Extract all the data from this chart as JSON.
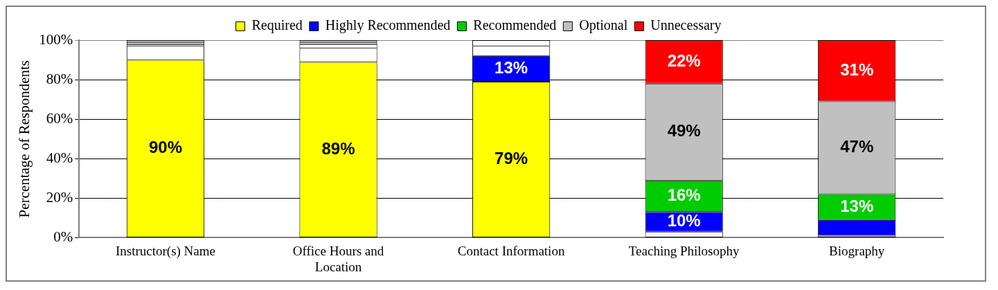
{
  "chart_data": {
    "type": "bar",
    "stacked": true,
    "ylabel": "Percentage of Respondents",
    "categories": [
      "Instructor(s) Name",
      "Office Hours and Location",
      "Contact Information",
      "Teaching Philosophy",
      "Biography"
    ],
    "series": [
      {
        "name": "Required",
        "color": "#ffff00",
        "colors": [
          "#ffff00",
          "#ffff00",
          "#ffff00",
          "#ffffff",
          "#ffffff"
        ],
        "values": [
          90,
          89,
          79,
          3,
          1
        ],
        "value_labels": [
          "90%",
          "89%",
          "79%",
          null,
          null
        ]
      },
      {
        "name": "Highly Recommended",
        "color": "#0000ff",
        "colors": [
          "#ffffff",
          "#ffffff",
          "#0000ff",
          "#0000ff",
          "#0000ff"
        ],
        "values": [
          7,
          7,
          13,
          10,
          8
        ],
        "value_labels": [
          null,
          null,
          "13%",
          "10%",
          null
        ]
      },
      {
        "name": "Recommended",
        "color": "#00cc00",
        "colors": [
          "#ffffff",
          "#ffffff",
          "#ffffff",
          "#00cc00",
          "#00cc00"
        ],
        "values": [
          1,
          2,
          5,
          16,
          13
        ],
        "value_labels": [
          null,
          null,
          null,
          "16%",
          "13%"
        ]
      },
      {
        "name": "Optional",
        "color": "#c0c0c0",
        "colors": [
          "#ffffff",
          "#ffffff",
          "#ffffff",
          "#c0c0c0",
          "#c0c0c0"
        ],
        "values": [
          1,
          1,
          3,
          49,
          47
        ],
        "value_labels": [
          null,
          null,
          null,
          "49%",
          "47%"
        ]
      },
      {
        "name": "Unnecessary",
        "color": "#ff0000",
        "colors": [
          "#ffffff",
          "#ffffff",
          "#ffffff",
          "#ff0000",
          "#ff0000"
        ],
        "values": [
          1,
          1,
          0,
          22,
          31
        ],
        "value_labels": [
          null,
          null,
          null,
          "22%",
          "31%"
        ]
      }
    ],
    "ylim": [
      0,
      100
    ],
    "yticks": [
      {
        "value": 0,
        "label": "0%"
      },
      {
        "value": 20,
        "label": "20%"
      },
      {
        "value": 40,
        "label": "40%"
      },
      {
        "value": 60,
        "label": "60%"
      },
      {
        "value": 80,
        "label": "80%"
      },
      {
        "value": 100,
        "label": "100%"
      }
    ],
    "grid": "y",
    "legend": "top"
  }
}
